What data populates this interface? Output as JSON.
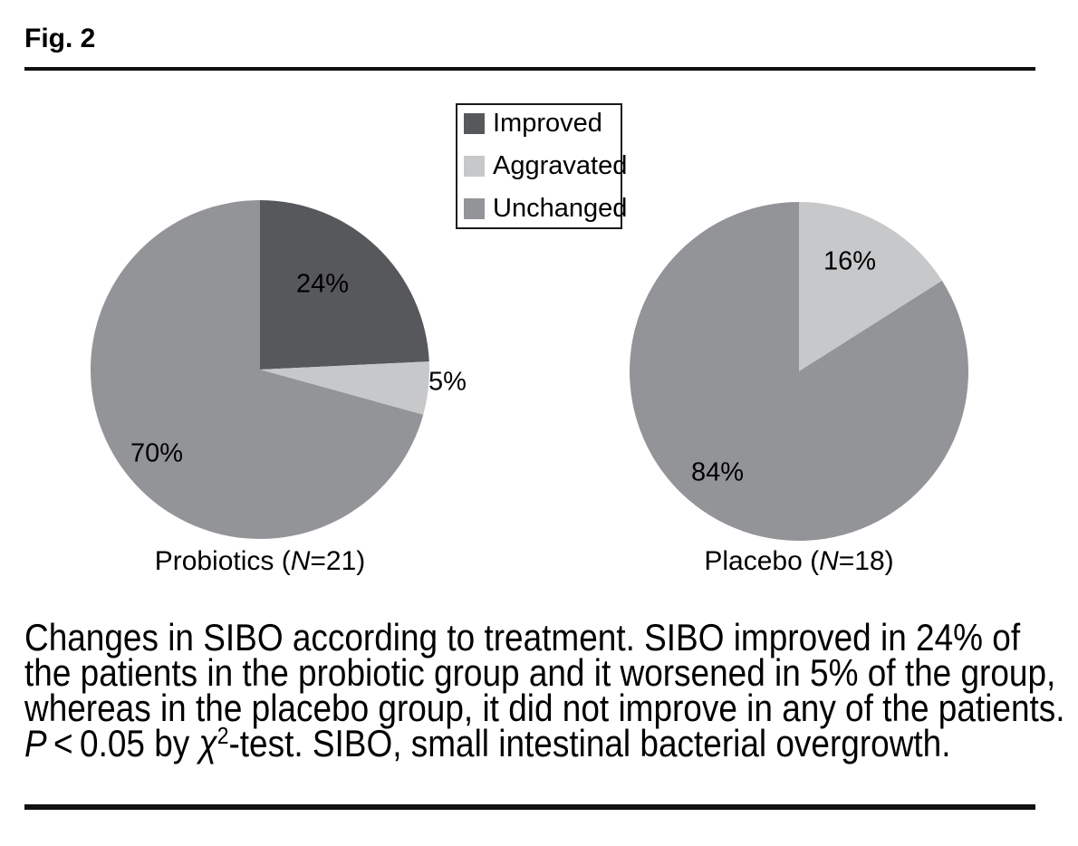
{
  "figure": {
    "label": "Fig. 2"
  },
  "legend": {
    "items": [
      {
        "label": "Improved",
        "color": "#57585c"
      },
      {
        "label": "Aggravated",
        "color": "#c7c8ca"
      },
      {
        "label": "Unchanged",
        "color": "#939498"
      }
    ]
  },
  "chart_data": [
    {
      "type": "pie",
      "title": "Probiotics (N=21)",
      "title_parts": {
        "prefix": "Probiotics (",
        "n": "N",
        "suffix": "=21)"
      },
      "labels": [
        "Improved",
        "Aggravated",
        "Unchanged"
      ],
      "values": [
        24,
        5,
        70
      ],
      "data_labels": [
        "24%",
        "5%",
        "70%"
      ],
      "colors": [
        "#57585c",
        "#c7c8ca",
        "#939498"
      ],
      "start_angle_deg": 0,
      "direction": "clockwise"
    },
    {
      "type": "pie",
      "title": "Placebo (N=18)",
      "title_parts": {
        "prefix": "Placebo (",
        "n": "N",
        "suffix": "=18)"
      },
      "labels": [
        "Aggravated",
        "Unchanged"
      ],
      "values": [
        16,
        84
      ],
      "data_labels": [
        "16%",
        "84%"
      ],
      "colors": [
        "#c7c8ca",
        "#939498"
      ],
      "start_angle_deg": 0,
      "direction": "clockwise"
    }
  ],
  "caption": {
    "line1": "Changes in SIBO according to treatment. SIBO improved in 24% of",
    "line2": "the patients in the probiotic group and it worsened in 5% of the group,",
    "line3": "whereas in the placebo group, it did not improve in any of the patients.",
    "line4": {
      "p": "P",
      "mid": " < 0.05 by ",
      "chi": "χ",
      "sup": "2",
      "rest": "-test. SIBO, small intestinal bacterial overgrowth."
    }
  }
}
